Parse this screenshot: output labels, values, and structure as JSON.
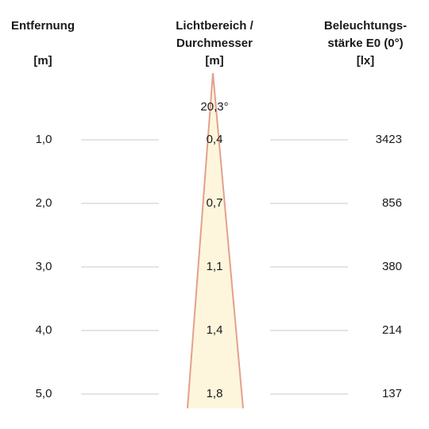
{
  "headers": {
    "distance": {
      "title": "Entfernung",
      "unit": "[m]"
    },
    "diameter": {
      "title_line1": "Lichtbereich /",
      "title_line2": "Durchmesser",
      "unit": "[m]"
    },
    "illuminance": {
      "title_line1": "Beleuchtungs-",
      "title_line2": "stärke E0 (0°)",
      "unit": "[lx]"
    }
  },
  "beam_angle": "20,3°",
  "rows": [
    {
      "distance": "1,0",
      "diameter": "0,4",
      "illuminance": "3423"
    },
    {
      "distance": "2,0",
      "diameter": "0,7",
      "illuminance": "856"
    },
    {
      "distance": "3,0",
      "diameter": "1,1",
      "illuminance": "380"
    },
    {
      "distance": "4,0",
      "diameter": "1,4",
      "illuminance": "214"
    },
    {
      "distance": "5,0",
      "diameter": "1,8",
      "illuminance": "137"
    }
  ],
  "colors": {
    "beam_fill": "#fdf6dc",
    "beam_edge": "#e4a08e",
    "guide_line": "#c8c8c8",
    "text": "#1a1a1a"
  }
}
